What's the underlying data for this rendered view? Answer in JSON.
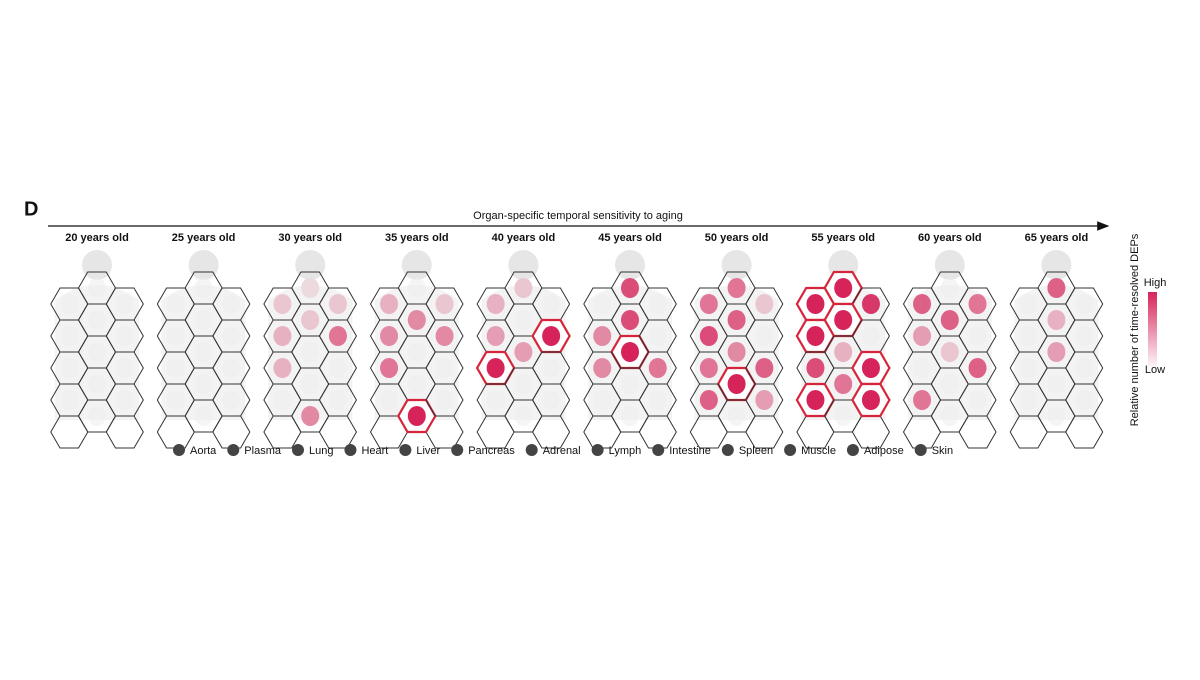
{
  "panel_label": "D",
  "axis_title": "Organ-specific temporal sensitivity to aging",
  "organs": [
    "Aorta",
    "Plasma",
    "Lung",
    "Heart",
    "Liver",
    "Pancreas",
    "Adrenal",
    "Lymph",
    "Intestine",
    "Spleen",
    "Muscle",
    "Adipose",
    "Skin"
  ],
  "panels": [
    {
      "label": "20 years old",
      "levels": [
        0,
        0,
        0,
        0,
        0,
        0,
        0,
        0,
        0,
        0,
        0,
        0,
        0
      ]
    },
    {
      "label": "25 years old",
      "levels": [
        0,
        0,
        0,
        0,
        0,
        0,
        0,
        0,
        0,
        0,
        0,
        0,
        0
      ]
    },
    {
      "label": "30 years old",
      "levels": [
        0.1,
        0.2,
        0.2,
        0.2,
        0.3,
        0,
        0.6,
        0.3,
        0,
        0,
        0,
        0.5,
        0
      ]
    },
    {
      "label": "35 years old",
      "levels": [
        0,
        0.2,
        0.3,
        0.5,
        0.5,
        0,
        0.5,
        0.6,
        0,
        0,
        0,
        1,
        0
      ]
    },
    {
      "label": "40 years old",
      "levels": [
        0.2,
        0,
        0.3,
        0,
        0.4,
        0.4,
        1,
        1,
        0,
        0,
        0,
        0,
        0
      ]
    },
    {
      "label": "45 years old",
      "levels": [
        0.8,
        0,
        0,
        0.8,
        0.5,
        1,
        0,
        0.5,
        0,
        0.6,
        0,
        0,
        0
      ]
    },
    {
      "label": "50 years old",
      "levels": [
        0.6,
        0.2,
        0.6,
        0.7,
        0.8,
        0.5,
        0,
        0.6,
        1,
        0.7,
        0.7,
        0,
        0.4
      ]
    },
    {
      "label": "55 years old",
      "levels": [
        1,
        0.9,
        1,
        1,
        1,
        0.3,
        0,
        0.8,
        0.6,
        1,
        1,
        0,
        1
      ]
    },
    {
      "label": "60 years old",
      "levels": [
        0,
        0.6,
        0.7,
        0.7,
        0.4,
        0.2,
        0,
        0,
        0,
        0.7,
        0.6,
        0,
        0
      ]
    },
    {
      "label": "65 years old",
      "levels": [
        0.7,
        0,
        0,
        0.3,
        0,
        0.4,
        0,
        0,
        0,
        0,
        0,
        0,
        0
      ]
    }
  ],
  "colorbar": {
    "title": "Relative number of time-resolved DEPs",
    "high": "High",
    "low": "Low"
  }
}
